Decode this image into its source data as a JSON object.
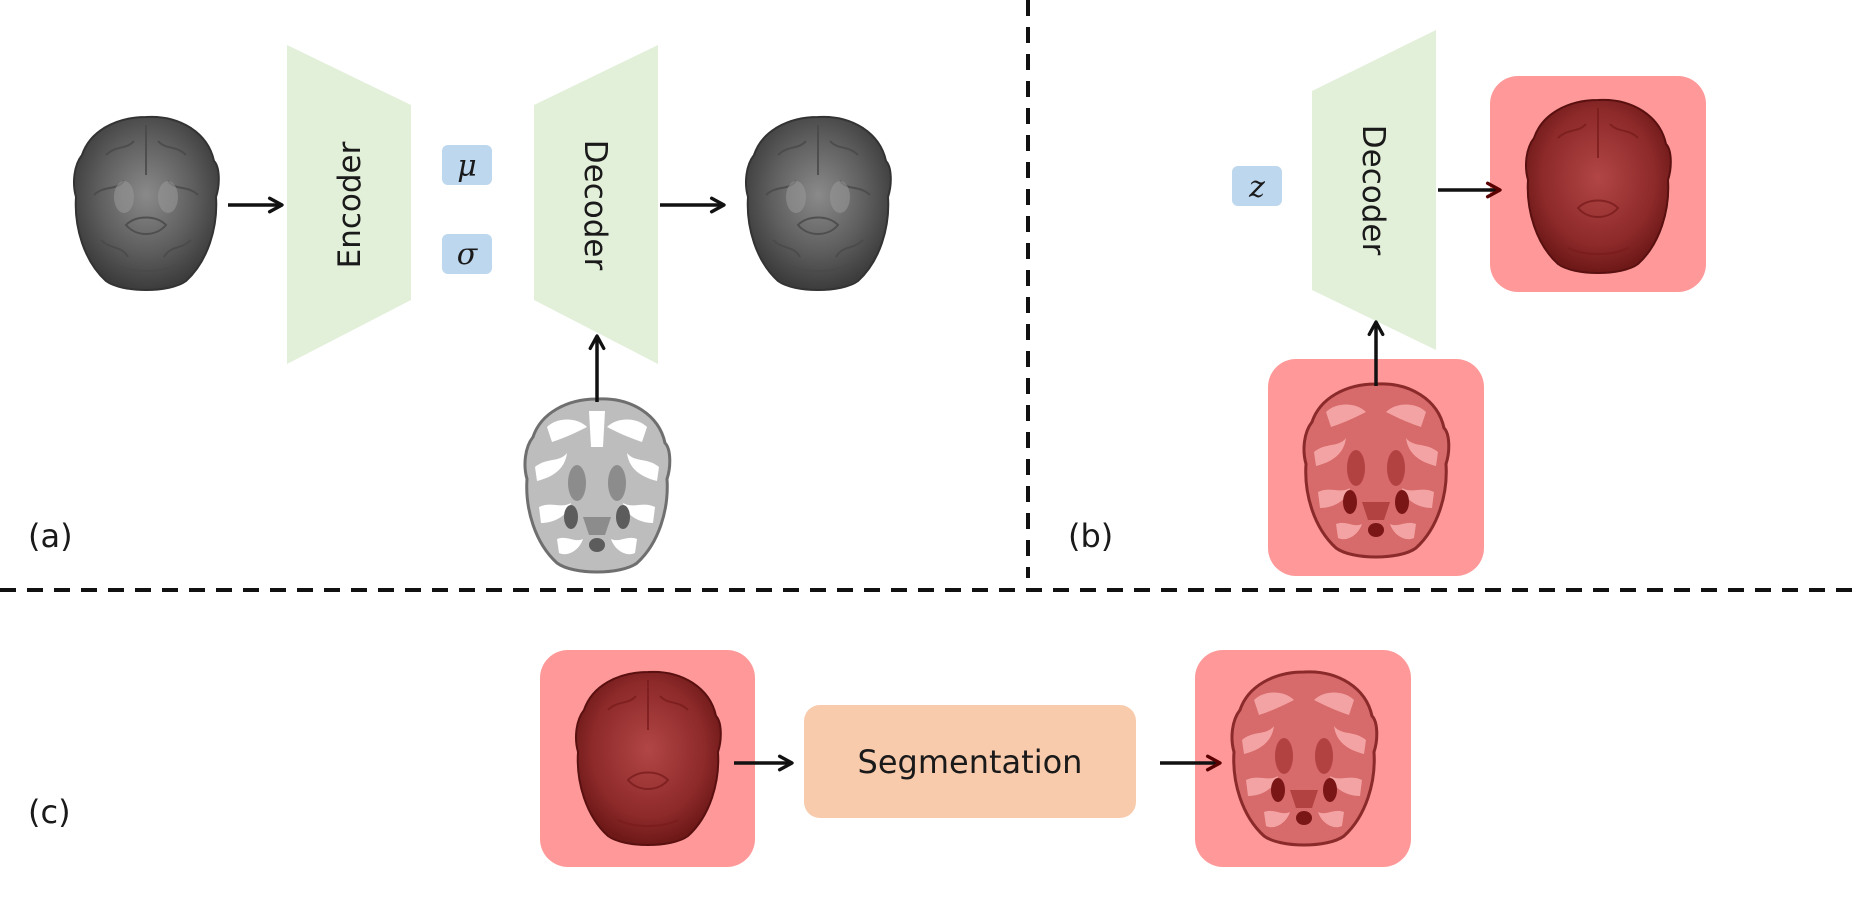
{
  "panels": {
    "a": {
      "label": "(a)",
      "encoder_label": "Encoder",
      "decoder_label": "Decoder",
      "mu_symbol": "μ",
      "sigma_symbol": "σ"
    },
    "b": {
      "label": "(b)",
      "decoder_label": "Decoder",
      "z_symbol": "z"
    },
    "c": {
      "label": "(c)",
      "segmentation_label": "Segmentation"
    }
  },
  "colors": {
    "trapezoid_fill": "#e2efd9",
    "latent_box_fill": "#bdd7ee",
    "red_tile_fill": "#ff9999",
    "segmentation_box_fill": "#f8cbad",
    "arrow": "#111111",
    "divider": "#111111"
  }
}
